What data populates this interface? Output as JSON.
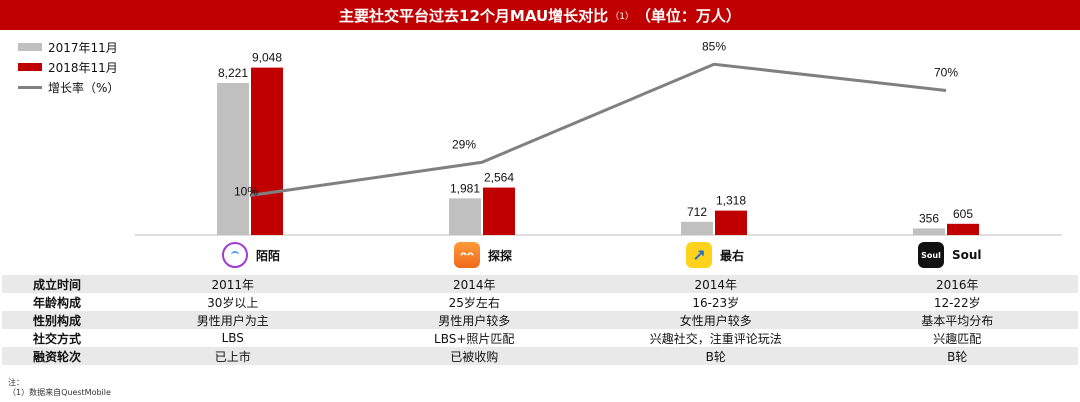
{
  "chart_data": {
    "type": "bar",
    "title_main": "主要社交平台过去12个月MAU增长对比",
    "title_sup": "（1）",
    "title_unit": "（单位：万人）",
    "categories": [
      "陌陌",
      "探探",
      "最右",
      "Soul"
    ],
    "series": [
      {
        "name": "2017年11月",
        "color": "#c0c0c0",
        "values": [
          8221,
          1981,
          712,
          356
        ]
      },
      {
        "name": "2018年11月",
        "color": "#c00000",
        "values": [
          9048,
          2564,
          1318,
          605
        ]
      }
    ],
    "data_labels": [
      [
        "8,221",
        "1,981",
        "712",
        "356"
      ],
      [
        "9,048",
        "2,564",
        "1,318",
        "605"
      ]
    ],
    "growth_series": {
      "name": "增长率（%）",
      "color": "#808080",
      "values": [
        10,
        29,
        85,
        70
      ]
    },
    "growth_labels": [
      "10%",
      "29%",
      "85%",
      "70%"
    ],
    "ylim": [
      0,
      10000
    ],
    "growth_ylim": [
      0,
      100
    ],
    "legend_position": "top-left"
  },
  "apps": [
    {
      "name": "陌陌",
      "icon": "momo-icon",
      "icon_text": ""
    },
    {
      "name": "探探",
      "icon": "tantan-icon",
      "icon_text": "ᴖᴖ"
    },
    {
      "name": "最右",
      "icon": "zuiyou-icon",
      "icon_text": "↗"
    },
    {
      "name": "Soul",
      "icon": "soul-icon",
      "icon_text": "Soul"
    }
  ],
  "table": {
    "rows": [
      {
        "header": "成立时间",
        "cells": [
          "2011年",
          "2014年",
          "2014年",
          "2016年"
        ]
      },
      {
        "header": "年龄构成",
        "cells": [
          "30岁以上",
          "25岁左右",
          "16-23岁",
          "12-22岁"
        ]
      },
      {
        "header": "性别构成",
        "cells": [
          "男性用户为主",
          "男性用户较多",
          "女性用户较多",
          "基本平均分布"
        ]
      },
      {
        "header": "社交方式",
        "cells": [
          "LBS",
          "LBS+照片匹配",
          "兴趣社交，注重评论玩法",
          "兴趣匹配"
        ]
      },
      {
        "header": "融资轮次",
        "cells": [
          "已上市",
          "已被收购",
          "B轮",
          "B轮"
        ]
      }
    ]
  },
  "notes": {
    "label": "注：",
    "source": "（1）数据来自QuestMobile"
  }
}
